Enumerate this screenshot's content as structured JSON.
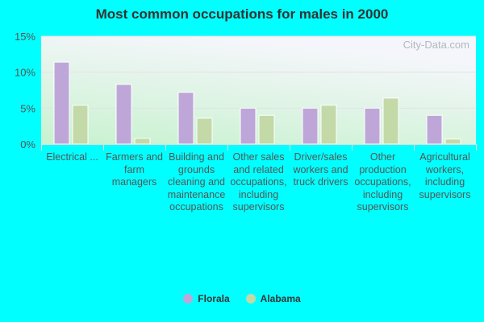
{
  "chart_data": {
    "type": "bar",
    "title": "Most common occupations for males in 2000",
    "categories": [
      "Electrical ...",
      "Farmers and farm managers",
      "Building and grounds cleaning and maintenance occupations",
      "Other sales and related occupations, including supervisors",
      "Driver/sales workers and truck drivers",
      "Other production occupations, including supervisors",
      "Agricultural workers, including supervisors"
    ],
    "series": [
      {
        "name": "Florala",
        "color": "#bea7d8",
        "values": [
          11.4,
          8.3,
          7.2,
          5.0,
          5.0,
          5.0,
          4.0
        ]
      },
      {
        "name": "Alabama",
        "color": "#c3d9a8",
        "values": [
          5.4,
          0.8,
          3.6,
          4.0,
          5.4,
          6.4,
          0.7
        ]
      }
    ],
    "ylim": [
      0,
      15
    ],
    "yticks": [
      "0%",
      "5%",
      "10%",
      "15%"
    ],
    "grid": true,
    "legend": "bottom",
    "watermark": "City-Data.com"
  }
}
